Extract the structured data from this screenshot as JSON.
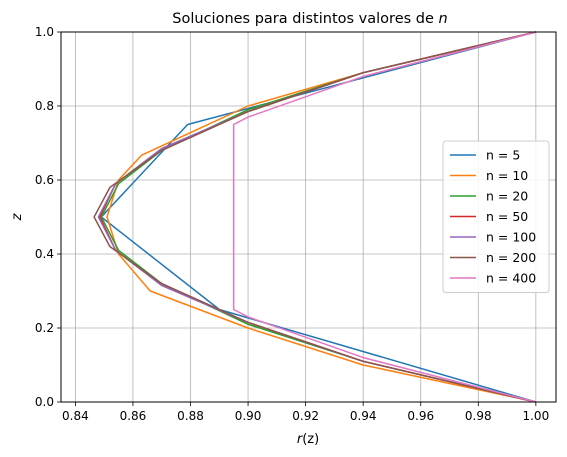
{
  "chart_data": {
    "type": "line",
    "title_prefix": "Soluciones para distintos valores de ",
    "title_var": "n",
    "xlabel_prefix": "r",
    "xlabel_suffix": "(z)",
    "ylabel": "z",
    "xlim": [
      0.835,
      1.007
    ],
    "ylim": [
      0.0,
      1.0
    ],
    "xticks": [
      "0.84",
      "0.86",
      "0.88",
      "0.90",
      "0.92",
      "0.94",
      "0.96",
      "0.98",
      "1.00"
    ],
    "xtick_values": [
      0.84,
      0.86,
      0.88,
      0.9,
      0.92,
      0.94,
      0.96,
      0.98,
      1.0
    ],
    "yticks": [
      "0.0",
      "0.2",
      "0.4",
      "0.6",
      "0.8",
      "1.0"
    ],
    "ytick_values": [
      0.0,
      0.2,
      0.4,
      0.6,
      0.8,
      1.0
    ],
    "grid": true,
    "legend_position": "center-right",
    "series": [
      {
        "name": "n = 5",
        "color": "#1f77b4",
        "points": [
          [
            1.0,
            0.0
          ],
          [
            0.89,
            0.25
          ],
          [
            0.849,
            0.5
          ],
          [
            0.879,
            0.75
          ],
          [
            1.0,
            1.0
          ]
        ]
      },
      {
        "name": "n = 10",
        "color": "#ff7f0e",
        "points": [
          [
            1.0,
            0.0
          ],
          [
            0.94,
            0.1
          ],
          [
            0.9,
            0.2
          ],
          [
            0.866,
            0.3
          ],
          [
            0.855,
            0.4
          ],
          [
            0.851,
            0.5
          ],
          [
            0.855,
            0.6
          ],
          [
            0.863,
            0.667
          ],
          [
            0.9,
            0.8
          ],
          [
            0.94,
            0.89
          ],
          [
            1.0,
            1.0
          ]
        ]
      },
      {
        "name": "n = 20",
        "color": "#2ca02c",
        "points": [
          [
            1.0,
            0.0
          ],
          [
            0.94,
            0.11
          ],
          [
            0.9,
            0.21
          ],
          [
            0.87,
            0.32
          ],
          [
            0.855,
            0.41
          ],
          [
            0.849,
            0.5
          ],
          [
            0.855,
            0.59
          ],
          [
            0.87,
            0.68
          ],
          [
            0.9,
            0.79
          ],
          [
            0.94,
            0.89
          ],
          [
            1.0,
            1.0
          ]
        ]
      },
      {
        "name": "n = 50",
        "color": "#d62728",
        "points": [
          [
            1.0,
            0.0
          ],
          [
            0.94,
            0.11
          ],
          [
            0.9,
            0.215
          ],
          [
            0.87,
            0.315
          ],
          [
            0.854,
            0.41
          ],
          [
            0.8485,
            0.5
          ],
          [
            0.854,
            0.59
          ],
          [
            0.87,
            0.685
          ],
          [
            0.9,
            0.785
          ],
          [
            0.94,
            0.89
          ],
          [
            1.0,
            1.0
          ]
        ]
      },
      {
        "name": "n = 100",
        "color": "#9467bd",
        "points": [
          [
            1.0,
            0.0
          ],
          [
            0.94,
            0.11
          ],
          [
            0.9,
            0.215
          ],
          [
            0.87,
            0.315
          ],
          [
            0.854,
            0.41
          ],
          [
            0.848,
            0.5
          ],
          [
            0.854,
            0.59
          ],
          [
            0.87,
            0.685
          ],
          [
            0.9,
            0.785
          ],
          [
            0.94,
            0.89
          ],
          [
            1.0,
            1.0
          ]
        ]
      },
      {
        "name": "n = 200",
        "color": "#8c564b",
        "points": [
          [
            1.0,
            0.0
          ],
          [
            0.94,
            0.11
          ],
          [
            0.9,
            0.215
          ],
          [
            0.87,
            0.32
          ],
          [
            0.852,
            0.42
          ],
          [
            0.8465,
            0.5
          ],
          [
            0.852,
            0.58
          ],
          [
            0.87,
            0.68
          ],
          [
            0.9,
            0.785
          ],
          [
            0.94,
            0.89
          ],
          [
            1.0,
            1.0
          ]
        ]
      },
      {
        "name": "n = 400",
        "color": "#e377c2",
        "points": [
          [
            1.0,
            0.0
          ],
          [
            0.94,
            0.12
          ],
          [
            0.9,
            0.23
          ],
          [
            0.895,
            0.25
          ],
          [
            0.895,
            0.75
          ],
          [
            0.9,
            0.77
          ],
          [
            0.94,
            0.88
          ],
          [
            1.0,
            1.0
          ]
        ]
      }
    ]
  }
}
